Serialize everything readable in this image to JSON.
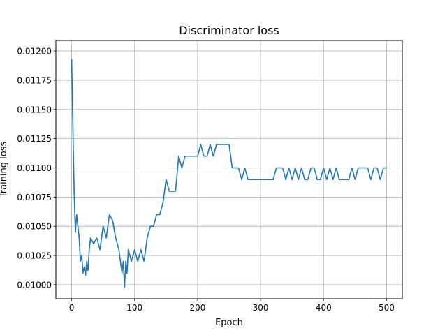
{
  "chart_data": {
    "type": "line",
    "title": "Discriminator loss",
    "xlabel": "Epoch",
    "ylabel": "Training loss",
    "xlim": [
      -25,
      525
    ],
    "ylim": [
      0.00988,
      0.01209
    ],
    "xticks": [
      0,
      100,
      200,
      300,
      400,
      500
    ],
    "xtick_labels": [
      "0",
      "100",
      "200",
      "300",
      "400",
      "500"
    ],
    "yticks": [
      0.01,
      0.01025,
      0.0105,
      0.01075,
      0.011,
      0.01125,
      0.0115,
      0.01175,
      0.012
    ],
    "ytick_labels": [
      "0.01000",
      "0.01025",
      "0.01050",
      "0.01075",
      "0.01100",
      "0.01125",
      "0.01150",
      "0.01175",
      "0.01200"
    ],
    "grid": true,
    "color": "#1f77b4",
    "series": [
      {
        "name": "",
        "x": [
          0,
          2,
          4,
          6,
          8,
          10,
          12,
          14,
          16,
          18,
          20,
          22,
          24,
          26,
          28,
          30,
          35,
          40,
          45,
          50,
          55,
          60,
          65,
          70,
          75,
          80,
          82,
          84,
          86,
          88,
          90,
          95,
          100,
          105,
          110,
          115,
          120,
          125,
          130,
          135,
          140,
          145,
          150,
          155,
          160,
          165,
          170,
          175,
          180,
          185,
          190,
          195,
          200,
          205,
          210,
          215,
          220,
          225,
          230,
          235,
          240,
          245,
          250,
          255,
          260,
          265,
          270,
          275,
          280,
          285,
          290,
          295,
          300,
          305,
          310,
          315,
          320,
          325,
          330,
          335,
          340,
          345,
          350,
          355,
          360,
          365,
          370,
          375,
          380,
          385,
          390,
          395,
          400,
          405,
          410,
          415,
          420,
          425,
          430,
          435,
          440,
          445,
          450,
          455,
          460,
          465,
          470,
          475,
          480,
          485,
          490,
          495,
          500
        ],
        "y": [
          0.01193,
          0.01135,
          0.0108,
          0.01045,
          0.0106,
          0.0105,
          0.0104,
          0.0102,
          0.01025,
          0.0101,
          0.01015,
          0.01008,
          0.0102,
          0.01012,
          0.0103,
          0.0104,
          0.01035,
          0.0104,
          0.0103,
          0.0105,
          0.0104,
          0.0106,
          0.01055,
          0.0104,
          0.0103,
          0.0101,
          0.0102,
          0.00998,
          0.0102,
          0.0101,
          0.0103,
          0.0102,
          0.0103,
          0.0102,
          0.0103,
          0.0102,
          0.0104,
          0.0105,
          0.0105,
          0.0106,
          0.0106,
          0.0107,
          0.0109,
          0.0108,
          0.0108,
          0.0108,
          0.0111,
          0.011,
          0.0111,
          0.0111,
          0.0111,
          0.0111,
          0.0111,
          0.0112,
          0.0111,
          0.0111,
          0.0112,
          0.0111,
          0.0112,
          0.0112,
          0.0112,
          0.0112,
          0.0112,
          0.011,
          0.011,
          0.011,
          0.0109,
          0.011,
          0.0109,
          0.0109,
          0.0109,
          0.0109,
          0.0109,
          0.0109,
          0.0109,
          0.0109,
          0.0109,
          0.011,
          0.011,
          0.011,
          0.0109,
          0.011,
          0.0109,
          0.011,
          0.0109,
          0.011,
          0.0109,
          0.0109,
          0.011,
          0.011,
          0.0109,
          0.0109,
          0.011,
          0.0109,
          0.011,
          0.0109,
          0.011,
          0.0109,
          0.0109,
          0.0109,
          0.0109,
          0.011,
          0.0109,
          0.011,
          0.011,
          0.011,
          0.011,
          0.0109,
          0.011,
          0.011,
          0.0109,
          0.011,
          0.011
        ]
      }
    ]
  }
}
